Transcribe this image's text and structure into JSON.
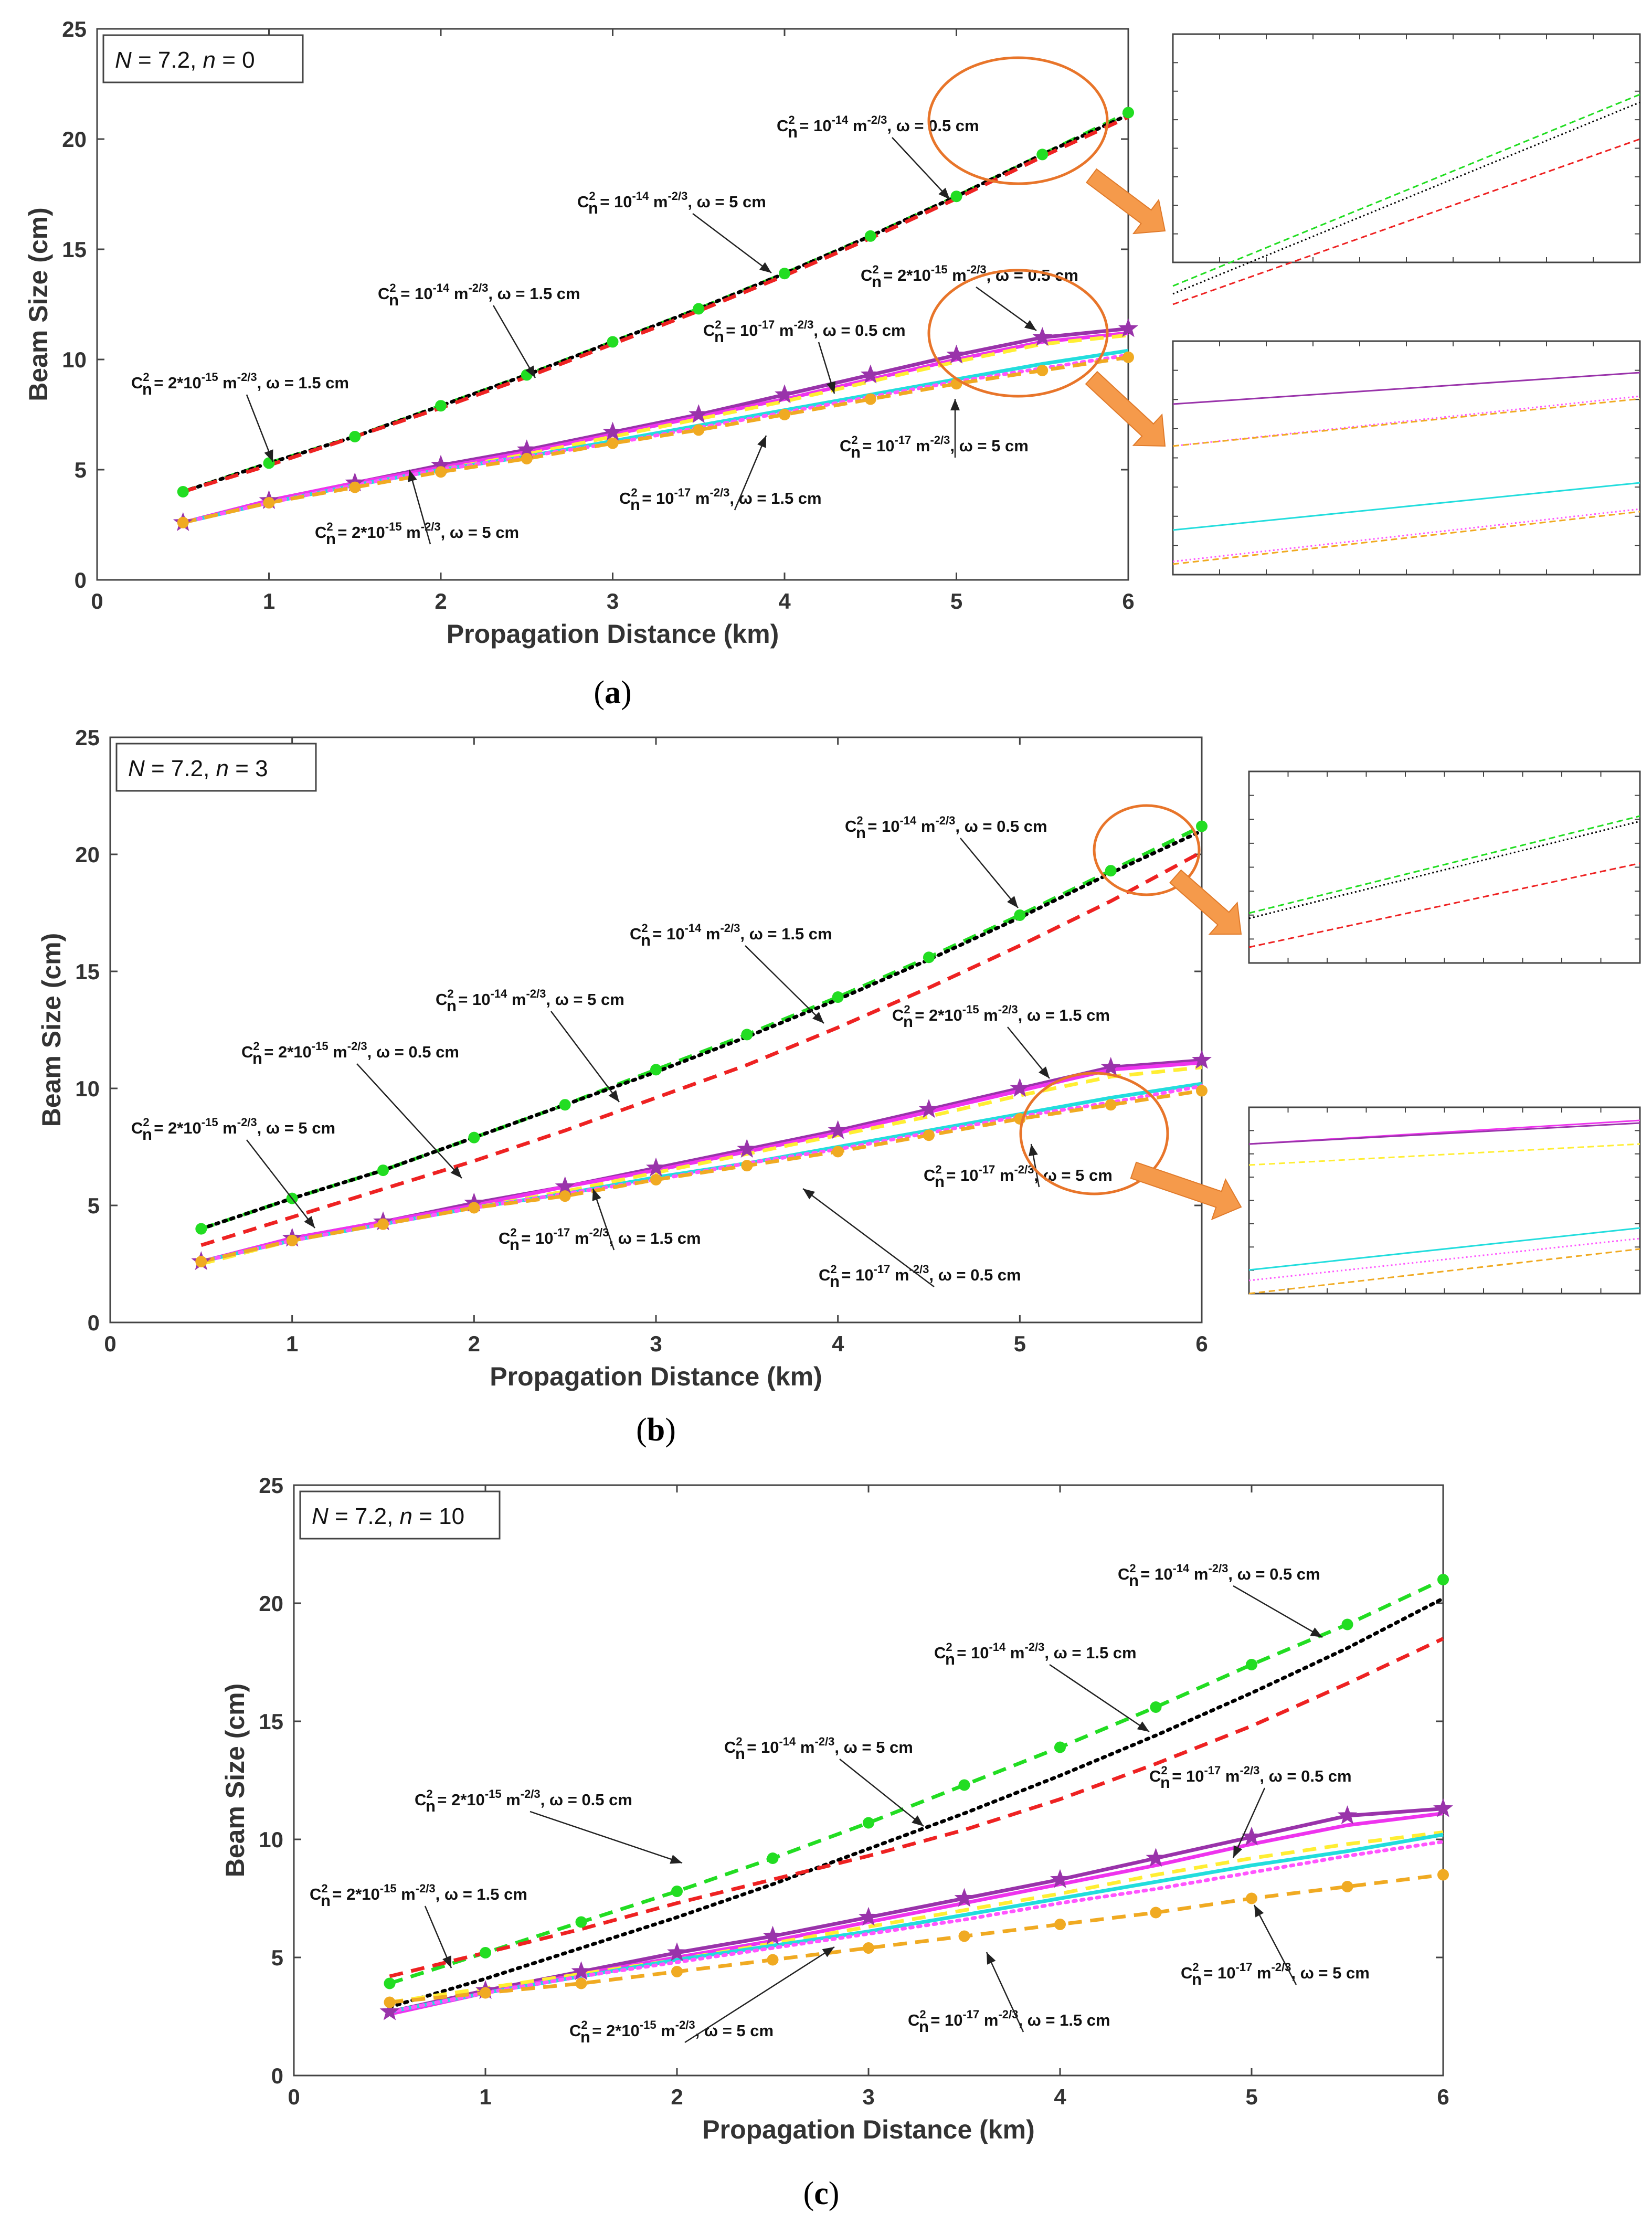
{
  "colors": {
    "green": "#22dd22",
    "black": "#000000",
    "red": "#ee2222",
    "purple": "#9933aa",
    "magenta": "#ee33ee",
    "cyan": "#22dddd",
    "pink": "#ff55ff",
    "yellow": "#ffee33",
    "orange": "#f0aa22",
    "ellipse": "#e8752a",
    "arrowfill": "#f59a4b"
  },
  "chart_data": [
    {
      "id": "a",
      "type": "line",
      "caption_letter": "a",
      "box": {
        "N": "N",
        "N_val": " = 7.2, ",
        "n": "n",
        "n_val": " = 0"
      },
      "title": "",
      "xlabel": "Propagation Distance (km)",
      "ylabel": "Beam Size (cm)",
      "xlim": [
        0,
        6
      ],
      "ylim": [
        0,
        25
      ],
      "xticks": [
        "0",
        "1",
        "2",
        "3",
        "4",
        "5",
        "6"
      ],
      "yticks": [
        "0",
        "5",
        "10",
        "15",
        "20",
        "25"
      ],
      "x": [
        0.5,
        1,
        1.5,
        2,
        2.5,
        3,
        3.5,
        4,
        4.5,
        5,
        5.5,
        6
      ],
      "series": [
        {
          "name": "Cn2 = 1e-14, w = 0.5 cm",
          "color": "green",
          "style": "dashed",
          "marker": "circle",
          "values": [
            4.0,
            5.3,
            6.5,
            7.9,
            9.3,
            10.8,
            12.3,
            13.9,
            15.6,
            17.4,
            19.3,
            21.2
          ]
        },
        {
          "name": "Cn2 = 1e-14, w = 1.5 cm",
          "color": "black",
          "style": "dotted",
          "marker": "none",
          "values": [
            4.0,
            5.3,
            6.5,
            7.9,
            9.3,
            10.8,
            12.3,
            13.9,
            15.6,
            17.4,
            19.3,
            21.1
          ]
        },
        {
          "name": "Cn2 = 1e-14, w = 5 cm",
          "color": "red",
          "style": "dashed",
          "marker": "none",
          "values": [
            4.0,
            5.2,
            6.5,
            7.8,
            9.2,
            10.7,
            12.2,
            13.8,
            15.5,
            17.3,
            19.2,
            21.0
          ]
        },
        {
          "name": "Cn2 = 2e-15, w = 0.5 cm",
          "color": "purple",
          "style": "solid",
          "marker": "star",
          "values": [
            2.6,
            3.6,
            4.4,
            5.2,
            5.9,
            6.7,
            7.5,
            8.4,
            9.3,
            10.2,
            11.0,
            11.4
          ]
        },
        {
          "name": "Cn2 = 2e-15, w = 1.5 cm",
          "color": "magenta",
          "style": "solid",
          "marker": "none",
          "values": [
            2.6,
            3.6,
            4.4,
            5.1,
            5.8,
            6.6,
            7.4,
            8.2,
            9.1,
            10.0,
            10.8,
            11.2
          ]
        },
        {
          "name": "Cn2 = 2e-15, w = 5 cm",
          "color": "yellow",
          "style": "dashed",
          "marker": "none",
          "values": [
            2.6,
            3.5,
            4.3,
            5.0,
            5.7,
            6.5,
            7.3,
            8.1,
            9.0,
            9.9,
            10.7,
            11.1
          ]
        },
        {
          "name": "Cn2 = 1e-17, w = 0.5 cm",
          "color": "cyan",
          "style": "solid",
          "marker": "none",
          "values": [
            2.6,
            3.5,
            4.3,
            5.0,
            5.6,
            6.3,
            7.0,
            7.7,
            8.4,
            9.1,
            9.8,
            10.4
          ]
        },
        {
          "name": "Cn2 = 1e-17, w = 1.5 cm",
          "color": "pink",
          "style": "dotted",
          "marker": "none",
          "values": [
            2.6,
            3.5,
            4.3,
            5.0,
            5.6,
            6.2,
            6.9,
            7.6,
            8.3,
            9.0,
            9.6,
            10.2
          ]
        },
        {
          "name": "Cn2 = 1e-17, w = 5 cm",
          "color": "orange",
          "style": "dashed",
          "marker": "circle",
          "values": [
            2.6,
            3.5,
            4.2,
            4.9,
            5.5,
            6.2,
            6.8,
            7.5,
            8.2,
            8.9,
            9.5,
            10.1
          ]
        }
      ],
      "annotations": [
        {
          "pre": "C",
          "sub": "n",
          "sup": "2",
          "mid": " = 10",
          "esup": "-14",
          "post": " m",
          "msup": "-2/3",
          "tail": ", ω = 0.5 cm"
        },
        {
          "pre": "C",
          "sub": "n",
          "sup": "2",
          "mid": " = 10",
          "esup": "-14",
          "post": " m",
          "msup": "-2/3",
          "tail": ", ω = 5 cm"
        },
        {
          "pre": "C",
          "sub": "n",
          "sup": "2",
          "mid": " = 10",
          "esup": "-14",
          "post": " m",
          "msup": "-2/3",
          "tail": ", ω = 1.5 cm"
        },
        {
          "pre": "C",
          "sub": "n",
          "sup": "2",
          "mid": " = 2*10",
          "esup": "-15",
          "post": " m",
          "msup": "-2/3",
          "tail": ", ω = 0.5 cm"
        },
        {
          "pre": "C",
          "sub": "n",
          "sup": "2",
          "mid": " = 10",
          "esup": "-17",
          "post": " m",
          "msup": "-2/3",
          "tail": ", ω = 0.5 cm"
        },
        {
          "pre": "C",
          "sub": "n",
          "sup": "2",
          "mid": " = 2*10",
          "esup": "-15",
          "post": " m",
          "msup": "-2/3",
          "tail": ", ω = 1.5 cm"
        },
        {
          "pre": "C",
          "sub": "n",
          "sup": "2",
          "mid": " = 10",
          "esup": "-17",
          "post": " m",
          "msup": "-2/3",
          "tail": ", ω = 5 cm"
        },
        {
          "pre": "C",
          "sub": "n",
          "sup": "2",
          "mid": " = 10",
          "esup": "-17",
          "post": " m",
          "msup": "-2/3",
          "tail": ", ω = 1.5 cm"
        },
        {
          "pre": "C",
          "sub": "n",
          "sup": "2",
          "mid": " = 2*10",
          "esup": "-15",
          "post": " m",
          "msup": "-2/3",
          "tail": ", ω = 5 cm"
        }
      ]
    },
    {
      "id": "b",
      "type": "line",
      "caption_letter": "b",
      "box": {
        "N": "N",
        "N_val": " = 7.2, ",
        "n": "n",
        "n_val": " = 3"
      },
      "title": "",
      "xlabel": "Propagation Distance (km)",
      "ylabel": "Beam Size (cm)",
      "xlim": [
        0,
        6
      ],
      "ylim": [
        0,
        25
      ],
      "xticks": [
        "0",
        "1",
        "2",
        "3",
        "4",
        "5",
        "6"
      ],
      "yticks": [
        "0",
        "5",
        "10",
        "15",
        "20",
        "25"
      ],
      "x": [
        0.5,
        1,
        1.5,
        2,
        2.5,
        3,
        3.5,
        4,
        4.5,
        5,
        5.5,
        6
      ],
      "series": [
        {
          "name": "Cn2 = 1e-14, w = 0.5 cm",
          "color": "green",
          "style": "dashed",
          "marker": "circle",
          "values": [
            4.0,
            5.3,
            6.5,
            7.9,
            9.3,
            10.8,
            12.3,
            13.9,
            15.6,
            17.4,
            19.3,
            21.2
          ]
        },
        {
          "name": "Cn2 = 1e-14, w = 1.5 cm",
          "color": "black",
          "style": "dotted",
          "marker": "none",
          "values": [
            4.0,
            5.3,
            6.5,
            7.9,
            9.3,
            10.7,
            12.2,
            13.8,
            15.5,
            17.3,
            19.2,
            21.0
          ]
        },
        {
          "name": "Cn2 = 1e-14, w = 5 cm",
          "color": "red",
          "style": "dashed",
          "marker": "none",
          "values": [
            3.3,
            4.5,
            5.7,
            6.9,
            8.2,
            9.6,
            11.0,
            12.6,
            14.3,
            16.1,
            18.0,
            20.1
          ]
        },
        {
          "name": "Cn2 = 2e-15, w = 0.5 cm",
          "color": "purple",
          "style": "solid",
          "marker": "star",
          "values": [
            2.6,
            3.6,
            4.3,
            5.1,
            5.8,
            6.6,
            7.4,
            8.2,
            9.1,
            10.0,
            10.9,
            11.2
          ]
        },
        {
          "name": "Cn2 = 2e-15, w = 1.5 cm",
          "color": "magenta",
          "style": "solid",
          "marker": "none",
          "values": [
            2.6,
            3.6,
            4.3,
            5.0,
            5.8,
            6.5,
            7.3,
            8.1,
            9.0,
            9.9,
            10.8,
            11.1
          ]
        },
        {
          "name": "Cn2 = 2e-15, w = 5 cm",
          "color": "yellow",
          "style": "dashed",
          "marker": "none",
          "values": [
            2.5,
            3.5,
            4.2,
            4.9,
            5.6,
            6.4,
            7.2,
            8.0,
            8.8,
            9.7,
            10.5,
            10.9
          ]
        },
        {
          "name": "Cn2 = 1e-17, w = 0.5 cm",
          "color": "cyan",
          "style": "solid",
          "marker": "none",
          "values": [
            2.6,
            3.5,
            4.2,
            4.9,
            5.5,
            6.2,
            6.8,
            7.5,
            8.2,
            8.9,
            9.6,
            10.2
          ]
        },
        {
          "name": "Cn2 = 1e-17, w = 1.5 cm",
          "color": "pink",
          "style": "dotted",
          "marker": "none",
          "values": [
            2.6,
            3.5,
            4.2,
            4.9,
            5.5,
            6.1,
            6.8,
            7.4,
            8.1,
            8.8,
            9.4,
            10.1
          ]
        },
        {
          "name": "Cn2 = 1e-17, w = 5 cm",
          "color": "orange",
          "style": "dashed",
          "marker": "circle",
          "values": [
            2.6,
            3.5,
            4.2,
            4.9,
            5.4,
            6.1,
            6.7,
            7.3,
            8.0,
            8.7,
            9.3,
            9.9
          ]
        }
      ],
      "annotations": [
        {
          "pre": "C",
          "sub": "n",
          "sup": "2",
          "mid": " = 10",
          "esup": "-14",
          "post": " m",
          "msup": "-2/3",
          "tail": ", ω = 0.5 cm"
        },
        {
          "pre": "C",
          "sub": "n",
          "sup": "2",
          "mid": " = 10",
          "esup": "-14",
          "post": " m",
          "msup": "-2/3",
          "tail": ", ω = 1.5 cm"
        },
        {
          "pre": "C",
          "sub": "n",
          "sup": "2",
          "mid": " = 10",
          "esup": "-14",
          "post": " m",
          "msup": "-2/3",
          "tail": ", ω = 5 cm"
        },
        {
          "pre": "C",
          "sub": "n",
          "sup": "2",
          "mid": " = 2*10",
          "esup": "-15",
          "post": " m",
          "msup": "-2/3",
          "tail": ", ω = 1.5 cm"
        },
        {
          "pre": "C",
          "sub": "n",
          "sup": "2",
          "mid": " = 2*10",
          "esup": "-15",
          "post": " m",
          "msup": "-2/3",
          "tail": ", ω = 0.5 cm"
        },
        {
          "pre": "C",
          "sub": "n",
          "sup": "2",
          "mid": " = 2*10",
          "esup": "-15",
          "post": " m",
          "msup": "-2/3",
          "tail": ", ω = 5 cm"
        },
        {
          "pre": "C",
          "sub": "n",
          "sup": "2",
          "mid": " = 10",
          "esup": "-17",
          "post": " m",
          "msup": "-2/3",
          "tail": ", ω = 5 cm"
        },
        {
          "pre": "C",
          "sub": "n",
          "sup": "2",
          "mid": " = 10",
          "esup": "-17",
          "post": " m",
          "msup": "-2/3",
          "tail": ", ω = 1.5 cm"
        },
        {
          "pre": "C",
          "sub": "n",
          "sup": "2",
          "mid": " = 10",
          "esup": "-17",
          "post": " m",
          "msup": "-2/3",
          "tail": ", ω = 0.5 cm"
        }
      ]
    },
    {
      "id": "c",
      "type": "line",
      "caption_letter": "c",
      "box": {
        "N": "N",
        "N_val": " = 7.2, ",
        "n": "n",
        "n_val": " = 10"
      },
      "title": "",
      "xlabel": "Propagation Distance (km)",
      "ylabel": "Beam Size (cm)",
      "xlim": [
        0,
        6
      ],
      "ylim": [
        0,
        25
      ],
      "xticks": [
        "0",
        "1",
        "2",
        "3",
        "4",
        "5",
        "6"
      ],
      "yticks": [
        "0",
        "5",
        "10",
        "15",
        "20",
        "25"
      ],
      "x": [
        0.5,
        1,
        1.5,
        2,
        2.5,
        3,
        3.5,
        4,
        4.5,
        5,
        5.5,
        6
      ],
      "series": [
        {
          "name": "Cn2 = 1e-14, w = 0.5 cm",
          "color": "green",
          "style": "dashed",
          "marker": "circle",
          "values": [
            3.9,
            5.2,
            6.5,
            7.8,
            9.2,
            10.7,
            12.3,
            13.9,
            15.6,
            17.4,
            19.1,
            21.0
          ]
        },
        {
          "name": "Cn2 = 1e-14, w = 1.5 cm",
          "color": "black",
          "style": "dotted",
          "marker": "none",
          "values": [
            2.9,
            4.1,
            5.4,
            6.7,
            8.1,
            9.6,
            11.1,
            12.7,
            14.4,
            16.2,
            18.1,
            20.2
          ]
        },
        {
          "name": "Cn2 = 1e-14, w = 5 cm",
          "color": "red",
          "style": "dashed",
          "marker": "none",
          "values": [
            4.2,
            5.2,
            6.2,
            7.3,
            8.3,
            9.3,
            10.4,
            11.7,
            13.2,
            14.8,
            16.6,
            18.5
          ]
        },
        {
          "name": "Cn2 = 2e-15, w = 0.5 cm",
          "color": "purple",
          "style": "solid",
          "marker": "star",
          "values": [
            2.7,
            3.6,
            4.4,
            5.2,
            5.9,
            6.7,
            7.5,
            8.3,
            9.2,
            10.1,
            11.0,
            11.3
          ]
        },
        {
          "name": "Cn2 = 2e-15, w = 1.5 cm",
          "color": "magenta",
          "style": "solid",
          "marker": "none",
          "values": [
            2.6,
            3.5,
            4.3,
            5.0,
            5.7,
            6.5,
            7.3,
            8.1,
            8.9,
            9.8,
            10.6,
            11.1
          ]
        },
        {
          "name": "Cn2 = 2e-15, w = 5 cm",
          "color": "yellow",
          "style": "dashed",
          "marker": "none",
          "values": [
            3.1,
            3.7,
            4.3,
            4.9,
            5.6,
            6.3,
            7.0,
            7.7,
            8.5,
            9.2,
            9.8,
            10.3
          ]
        },
        {
          "name": "Cn2 = 1e-17, w = 0.5 cm",
          "color": "cyan",
          "style": "solid",
          "marker": "none",
          "values": [
            2.7,
            3.5,
            4.2,
            4.9,
            5.5,
            6.1,
            6.8,
            7.5,
            8.2,
            8.9,
            9.5,
            10.2
          ]
        },
        {
          "name": "Cn2 = 1e-17, w = 1.5 cm",
          "color": "pink",
          "style": "dotted",
          "marker": "none",
          "values": [
            2.7,
            3.5,
            4.2,
            4.8,
            5.4,
            6.0,
            6.6,
            7.3,
            7.9,
            8.6,
            9.3,
            9.9
          ]
        },
        {
          "name": "Cn2 = 1e-17, w = 5 cm",
          "color": "orange",
          "style": "dashed",
          "marker": "circle",
          "values": [
            3.1,
            3.5,
            3.9,
            4.4,
            4.9,
            5.4,
            5.9,
            6.4,
            6.9,
            7.5,
            8.0,
            8.5
          ]
        }
      ],
      "annotations": [
        {
          "pre": "C",
          "sub": "n",
          "sup": "2",
          "mid": " = 10",
          "esup": "-14",
          "post": " m",
          "msup": "-2/3",
          "tail": ", ω = 0.5 cm"
        },
        {
          "pre": "C",
          "sub": "n",
          "sup": "2",
          "mid": " = 10",
          "esup": "-14",
          "post": " m",
          "msup": "-2/3",
          "tail": ", ω = 1.5 cm"
        },
        {
          "pre": "C",
          "sub": "n",
          "sup": "2",
          "mid": " = 10",
          "esup": "-14",
          "post": " m",
          "msup": "-2/3",
          "tail": ", ω = 5 cm"
        },
        {
          "pre": "C",
          "sub": "n",
          "sup": "2",
          "mid": " = 2*10",
          "esup": "-15",
          "post": " m",
          "msup": "-2/3",
          "tail": ", ω = 0.5 cm"
        },
        {
          "pre": "C",
          "sub": "n",
          "sup": "2",
          "mid": " = 10",
          "esup": "-17",
          "post": " m",
          "msup": "-2/3",
          "tail": ", ω = 0.5 cm"
        },
        {
          "pre": "C",
          "sub": "n",
          "sup": "2",
          "mid": " = 2*10",
          "esup": "-15",
          "post": " m",
          "msup": "-2/3",
          "tail": ", ω = 1.5 cm"
        },
        {
          "pre": "C",
          "sub": "n",
          "sup": "2",
          "mid": " = 10",
          "esup": "-17",
          "post": " m",
          "msup": "-2/3",
          "tail": ", ω = 5 cm"
        },
        {
          "pre": "C",
          "sub": "n",
          "sup": "2",
          "mid": " = 2*10",
          "esup": "-15",
          "post": " m",
          "msup": "-2/3",
          "tail": ", ω = 5 cm"
        },
        {
          "pre": "C",
          "sub": "n",
          "sup": "2",
          "mid": " = 10",
          "esup": "-17",
          "post": " m",
          "msup": "-2/3",
          "tail": ", ω = 1.5 cm"
        }
      ]
    }
  ]
}
